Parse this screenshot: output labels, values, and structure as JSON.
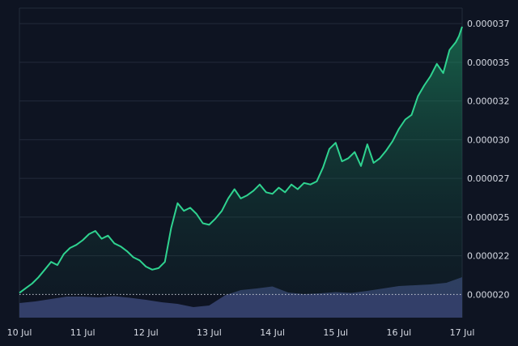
{
  "chart_data": {
    "type": "area",
    "title": "",
    "xlabel": "",
    "ylabel": "",
    "y_axis_side": "right",
    "grid": true,
    "ylim": [
      1.85e-05,
      3.85e-05
    ],
    "x_tick_labels": [
      "10 Jul",
      "11 Jul",
      "12 Jul",
      "13 Jul",
      "14 Jul",
      "15 Jul",
      "16 Jul",
      "17 Jul"
    ],
    "y_tick_labels": [
      "0.000020",
      "0.000022",
      "0.000025",
      "0.000027",
      "0.000030",
      "0.000032",
      "0.000035",
      "0.000037"
    ],
    "y_tick_values": [
      2e-05,
      2.25e-05,
      2.5e-05,
      2.75e-05,
      3e-05,
      3.25e-05,
      3.5e-05,
      3.75e-05
    ],
    "baseline_value": 2e-05,
    "series": [
      {
        "type": "price-area",
        "color": "#2fd390",
        "x": [
          0,
          0.1,
          0.2,
          0.3,
          0.4,
          0.5,
          0.6,
          0.7,
          0.8,
          0.9,
          1,
          1.1,
          1.2,
          1.3,
          1.4,
          1.5,
          1.6,
          1.7,
          1.8,
          1.9,
          2,
          2.1,
          2.2,
          2.3,
          2.4,
          2.5,
          2.6,
          2.7,
          2.8,
          2.9,
          3,
          3.1,
          3.2,
          3.3,
          3.4,
          3.5,
          3.6,
          3.7,
          3.8,
          3.9,
          4,
          4.1,
          4.2,
          4.3,
          4.4,
          4.5,
          4.6,
          4.7,
          4.8,
          4.9,
          5,
          5.1,
          5.2,
          5.3,
          5.4,
          5.5,
          5.6,
          5.7,
          5.8,
          5.9,
          6,
          6.1,
          6.2,
          6.3,
          6.4,
          6.5,
          6.6,
          6.7,
          6.8,
          6.9,
          6.95,
          7
        ],
        "values": [
          2.01e-05,
          2.04e-05,
          2.07e-05,
          2.11e-05,
          2.16e-05,
          2.21e-05,
          2.19e-05,
          2.26e-05,
          2.3e-05,
          2.32e-05,
          2.35e-05,
          2.39e-05,
          2.41e-05,
          2.36e-05,
          2.38e-05,
          2.33e-05,
          2.31e-05,
          2.28e-05,
          2.24e-05,
          2.22e-05,
          2.18e-05,
          2.16e-05,
          2.17e-05,
          2.21e-05,
          2.43e-05,
          2.59e-05,
          2.54e-05,
          2.56e-05,
          2.52e-05,
          2.46e-05,
          2.45e-05,
          2.49e-05,
          2.54e-05,
          2.62e-05,
          2.68e-05,
          2.62e-05,
          2.64e-05,
          2.67e-05,
          2.71e-05,
          2.66e-05,
          2.65e-05,
          2.69e-05,
          2.66e-05,
          2.71e-05,
          2.68e-05,
          2.72e-05,
          2.71e-05,
          2.73e-05,
          2.82e-05,
          2.94e-05,
          2.98e-05,
          2.86e-05,
          2.88e-05,
          2.92e-05,
          2.83e-05,
          2.97e-05,
          2.85e-05,
          2.88e-05,
          2.93e-05,
          2.99e-05,
          3.07e-05,
          3.13e-05,
          3.16e-05,
          3.28e-05,
          3.35e-05,
          3.41e-05,
          3.49e-05,
          3.43e-05,
          3.58e-05,
          3.63e-05,
          3.67e-05,
          3.73e-05
        ]
      },
      {
        "type": "volume",
        "color": "#3a4676",
        "x": [
          0,
          0.25,
          0.5,
          0.75,
          1,
          1.25,
          1.5,
          1.75,
          2,
          2.25,
          2.5,
          2.75,
          3,
          3.25,
          3.5,
          3.75,
          4,
          4.25,
          4.5,
          4.75,
          5,
          5.25,
          5.5,
          5.75,
          6,
          6.25,
          6.5,
          6.75,
          7
        ],
        "values": [
          0.36,
          0.4,
          0.46,
          0.52,
          0.52,
          0.5,
          0.53,
          0.49,
          0.44,
          0.38,
          0.34,
          0.26,
          0.3,
          0.55,
          0.68,
          0.72,
          0.77,
          0.62,
          0.58,
          0.6,
          0.63,
          0.61,
          0.66,
          0.72,
          0.78,
          0.8,
          0.82,
          0.86,
          1.0
        ]
      }
    ]
  }
}
